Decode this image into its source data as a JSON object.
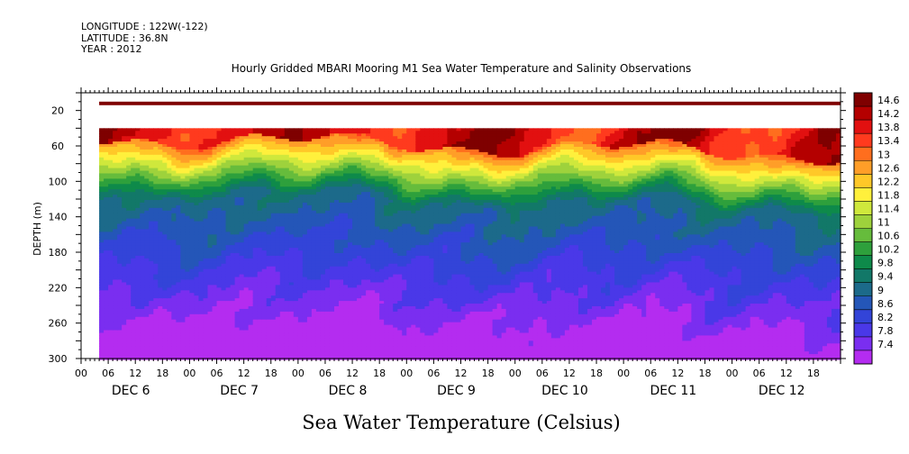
{
  "header": {
    "longitude": "LONGITUDE : 122W(-122)",
    "latitude": "LATITUDE : 36.8N",
    "year": "YEAR : 2012"
  },
  "chart_data": {
    "type": "heatmap",
    "title": "Hourly Gridded MBARI Mooring M1 Sea Water Temperature and Salinity Observations",
    "xlabel": "Sea Water Temperature (Celsius)",
    "ylabel": "DEPTH (m)",
    "x_start": "2012-12-06 00:00",
    "x_end": "2012-12-12 23:00",
    "data_start": "2012-12-06 04:00",
    "x_hour_ticks": [
      "00",
      "06",
      "12",
      "18",
      "00",
      "06",
      "12",
      "18",
      "00",
      "06",
      "12",
      "18",
      "00",
      "06",
      "12",
      "18",
      "00",
      "06",
      "12",
      "18",
      "00",
      "06",
      "12",
      "18",
      "00",
      "06",
      "12",
      "18"
    ],
    "x_day_labels": [
      "DEC  6",
      "DEC  7",
      "DEC  8",
      "DEC  9",
      "DEC 10",
      "DEC 11",
      "DEC 12"
    ],
    "ylim": [
      0,
      300
    ],
    "y_ticks": [
      20,
      60,
      100,
      140,
      180,
      220,
      260,
      300
    ],
    "colorbar_levels": [
      "14.6",
      "14.2",
      "13.8",
      "13.4",
      "13",
      "12.6",
      "12.2",
      "11.8",
      "11.4",
      "11",
      "10.6",
      "10.2",
      "9.8",
      "9.4",
      "9",
      "8.6",
      "8.2",
      "7.8",
      "7.4"
    ],
    "colorbar_colors": [
      "#7f0000",
      "#b40000",
      "#e21010",
      "#ff3a1e",
      "#ff6e1e",
      "#ff9e28",
      "#ffc828",
      "#fff03c",
      "#cfe83c",
      "#9ed23c",
      "#66bc3c",
      "#2ea03c",
      "#0e8a4a",
      "#127868",
      "#1c6a8a",
      "#2456b8",
      "#3344d8",
      "#4a38e8",
      "#7a2ef0",
      "#b42cf0"
    ],
    "gridded_rows": [
      {
        "depth_range": [
          10,
          14
        ],
        "temperature": 14.6
      },
      {
        "depth_range": [
          14,
          40
        ],
        "temperature": null
      }
    ],
    "temperature_range": [
      7.4,
      14.6
    ]
  }
}
